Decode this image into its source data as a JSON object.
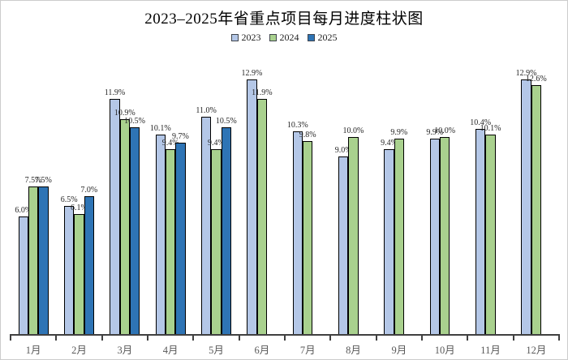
{
  "window": {
    "background_color": "#ffffff",
    "border_color": "#cccccc"
  },
  "chart_data": {
    "type": "bar",
    "title": "2023–2025年省重点项目每月进度柱状图",
    "xlabel": "",
    "ylabel": "",
    "value_suffix": "%",
    "value_decimals": 1,
    "ylim": [
      0,
      13.5
    ],
    "grid": false,
    "legend_position": "top",
    "data_labels": "outside-end",
    "categories": [
      "1月",
      "2月",
      "3月",
      "4月",
      "5月",
      "6月",
      "7月",
      "8月",
      "9月",
      "10月",
      "11月",
      "12月"
    ],
    "series": [
      {
        "name": "2023",
        "color": "#b4c7e7",
        "values": [
          6.0,
          6.5,
          11.9,
          10.1,
          11.0,
          12.9,
          10.3,
          9.0,
          9.4,
          9.9,
          10.4,
          12.9
        ]
      },
      {
        "name": "2024",
        "color": "#a9d18e",
        "values": [
          7.5,
          6.1,
          10.9,
          9.4,
          9.4,
          11.9,
          9.8,
          10.0,
          9.9,
          10.0,
          10.1,
          12.6
        ]
      },
      {
        "name": "2025",
        "color": "#2e74b5",
        "values": [
          7.5,
          7.0,
          10.5,
          9.7,
          10.5,
          null,
          null,
          null,
          null,
          null,
          null,
          null
        ]
      }
    ]
  },
  "axis": {
    "line_color": "#404040",
    "tick_label_color": "#595959",
    "bar_outline_color": "#000000",
    "data_label_color": "#262626"
  }
}
